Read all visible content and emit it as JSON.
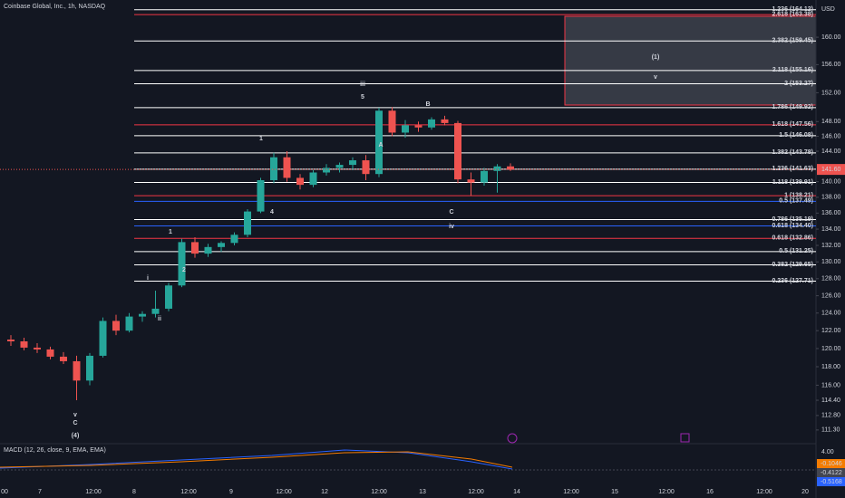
{
  "chart_data": {
    "type": "candlestick",
    "title": "Coinbase Global, Inc., 1h, NASDAQ",
    "currency": "USD",
    "log_scale": true,
    "ylim": [
      109.9,
      165.6
    ],
    "yticks": [
      {
        "value": 160,
        "label": "160.00"
      },
      {
        "value": 156,
        "label": "156.00"
      },
      {
        "value": 152,
        "label": "152.00"
      },
      {
        "value": 148,
        "label": "148.00"
      },
      {
        "value": 146,
        "label": "146.00"
      },
      {
        "value": 144,
        "label": "144.00"
      },
      {
        "value": 140,
        "label": "140.00"
      },
      {
        "value": 138,
        "label": "138.00"
      },
      {
        "value": 136,
        "label": "136.00"
      },
      {
        "value": 134,
        "label": "134.00"
      },
      {
        "value": 132,
        "label": "132.00"
      },
      {
        "value": 130,
        "label": "130.00"
      },
      {
        "value": 128,
        "label": "128.00"
      },
      {
        "value": 126,
        "label": "126.00"
      },
      {
        "value": 124,
        "label": "124.00"
      },
      {
        "value": 122,
        "label": "122.00"
      },
      {
        "value": 120,
        "label": "120.00"
      },
      {
        "value": 118,
        "label": "118.00"
      },
      {
        "value": 116,
        "label": "116.00"
      },
      {
        "value": 114.4,
        "label": "114.40"
      },
      {
        "value": 112.8,
        "label": "112.80"
      },
      {
        "value": 111.3,
        "label": "111.30"
      }
    ],
    "x_labels": [
      "00",
      "7",
      "12:00",
      "8",
      "12:00",
      "9",
      "12:00",
      "12",
      "12:00",
      "13",
      "12:00",
      "14",
      "12:00",
      "15",
      "12:00",
      "16",
      "12:00",
      "20"
    ],
    "up_color": "#26a69a",
    "down_color": "#ef5350",
    "open": [
      121,
      120.8,
      120.1,
      119.9,
      119.1,
      118.6,
      116.5,
      119.2,
      123.1,
      122,
      123.6,
      123.9,
      124.5,
      127.2,
      132.4,
      131,
      131.8,
      132.3,
      133.3,
      136.2,
      140.2,
      143.2,
      140.5,
      139.6,
      141.2,
      141.8,
      142.2,
      142.8,
      141,
      149.5,
      146.5,
      147.5,
      147.2,
      148.3,
      147.8,
      140.3,
      139.9,
      141.4,
      142
    ],
    "high": [
      121.5,
      121.2,
      120.6,
      120.2,
      119.6,
      119.2,
      119.5,
      123.5,
      123.8,
      124,
      124.2,
      126.6,
      127.5,
      132.8,
      133,
      132.2,
      132.5,
      133.6,
      136.5,
      140.5,
      143.8,
      144,
      141,
      141.5,
      142.3,
      142.5,
      143.2,
      143.5,
      149.9,
      150,
      148.2,
      148,
      148.6,
      148.8,
      148.1,
      141.2,
      141.8,
      142.3,
      142.4
    ],
    "low": [
      120.3,
      119.8,
      119.5,
      118.8,
      118.3,
      114.4,
      116,
      119,
      121.5,
      121.8,
      123,
      123.5,
      124.2,
      127,
      130.5,
      130.6,
      131.2,
      132,
      133,
      136,
      139.8,
      140,
      139,
      139.3,
      140.8,
      141.2,
      141.5,
      140.2,
      140.6,
      146,
      145.8,
      146.6,
      146.9,
      147.5,
      139.8,
      138.2,
      139.5,
      138.6,
      141.4
    ],
    "close": [
      120.8,
      120.1,
      119.9,
      119.1,
      118.6,
      116.5,
      119.2,
      123.1,
      122,
      123.6,
      123.9,
      124.5,
      127.2,
      132.4,
      131,
      131.8,
      132.3,
      133.3,
      136.2,
      140.2,
      143.2,
      140.5,
      139.6,
      141.2,
      141.8,
      142.2,
      142.8,
      141,
      149.5,
      146.5,
      147.5,
      147.2,
      148.3,
      147.8,
      140.3,
      139.9,
      141.4,
      142,
      141.6
    ],
    "last_price": {
      "value": 141.6,
      "label": "141.60"
    },
    "levels": [
      {
        "label": "1.236 (164.12)",
        "value": 164.12,
        "color": "#ffffff"
      },
      {
        "label": "2.618 (163.38)",
        "value": 163.38,
        "color": "#f23645"
      },
      {
        "label": "2.382 (159.45)",
        "value": 159.45,
        "color": "#ffffff"
      },
      {
        "label": "2.118 (155.16)",
        "value": 155.16,
        "color": "#ffffff"
      },
      {
        "label": "2 (153.27)",
        "value": 153.27,
        "color": "#ffffff"
      },
      {
        "label": "1.786 (149.92)",
        "value": 149.92,
        "color": "#ffffff"
      },
      {
        "label": "1.618 (147.56)",
        "value": 147.56,
        "color": "#f23645"
      },
      {
        "label": "1.5 (146.08)",
        "value": 146.08,
        "color": "#ffffff"
      },
      {
        "label": "1.382 (143.78)",
        "value": 143.78,
        "color": "#ffffff"
      },
      {
        "label": "1.236 (141.63)",
        "value": 141.63,
        "color": "#ffffff"
      },
      {
        "label": "1.118 (139.91)",
        "value": 139.91,
        "color": "#ffffff"
      },
      {
        "label": "1 (138.21)",
        "value": 138.21,
        "color": "#f23645"
      },
      {
        "label": "0.5 (137.49)",
        "value": 137.49,
        "color": "#2962ff"
      },
      {
        "label": "0.786 (135.19)",
        "value": 135.19,
        "color": "#ffffff"
      },
      {
        "label": "0.618 (134.40)",
        "value": 134.4,
        "color": "#2962ff"
      },
      {
        "label": "0.618 (132.86)",
        "value": 132.86,
        "color": "#f23645"
      },
      {
        "label": "0.5 (131.25)",
        "value": 131.25,
        "color": "#ffffff"
      },
      {
        "label": "0.382 (129.65)",
        "value": 129.65,
        "color": "#ffffff"
      },
      {
        "label": "0.236 (127.71)",
        "value": 127.71,
        "color": "#ffffff"
      }
    ],
    "annotations": [
      "iii",
      "5",
      "B",
      "A",
      "1",
      "4",
      "C",
      "iv",
      "1",
      "2",
      "i",
      "ii",
      "v",
      "C",
      "(4)",
      "(1)",
      "v"
    ],
    "macd": {
      "title": "MACD (12, 26, close, 9, EMA, EMA)",
      "tick": "4.00",
      "values": [
        {
          "value": -0.1046,
          "color": "#f57c00"
        },
        {
          "value": -0.4122,
          "color": "#434651"
        },
        {
          "value": -0.5168,
          "color": "#2962ff"
        }
      ]
    }
  }
}
